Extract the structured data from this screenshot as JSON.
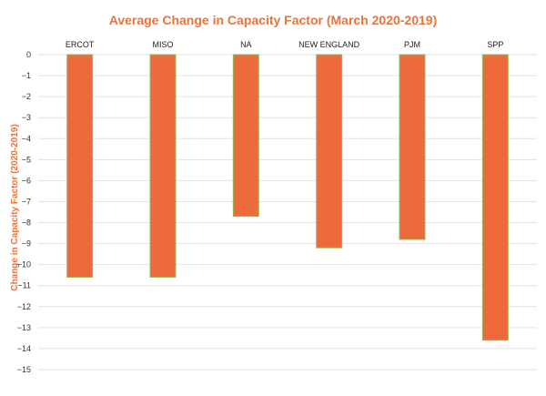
{
  "chart_data": {
    "type": "bar",
    "title": "Average Change in Capacity Factor (March 2020-2019)",
    "ylabel": "Change in Capacity Factor (2020-2019)",
    "xlabel": "",
    "categories": [
      "ERCOT",
      "MISO",
      "NA",
      "NEW ENGLAND",
      "PJM",
      "SPP"
    ],
    "values": [
      -10.6,
      -10.6,
      -7.7,
      -9.2,
      -8.8,
      -13.6
    ],
    "ylim": [
      -15,
      0
    ],
    "yticks": [
      0,
      -1,
      -2,
      -3,
      -4,
      -5,
      -6,
      -7,
      -8,
      -9,
      -10,
      -11,
      -12,
      -13,
      -14,
      -15
    ],
    "grid": true,
    "category_axis_position": "top",
    "colors": {
      "bar": "#ed6a3c",
      "bar_edge": "#8fbf5a",
      "title": "#e8743b",
      "grid": "#e2e2e2"
    }
  }
}
